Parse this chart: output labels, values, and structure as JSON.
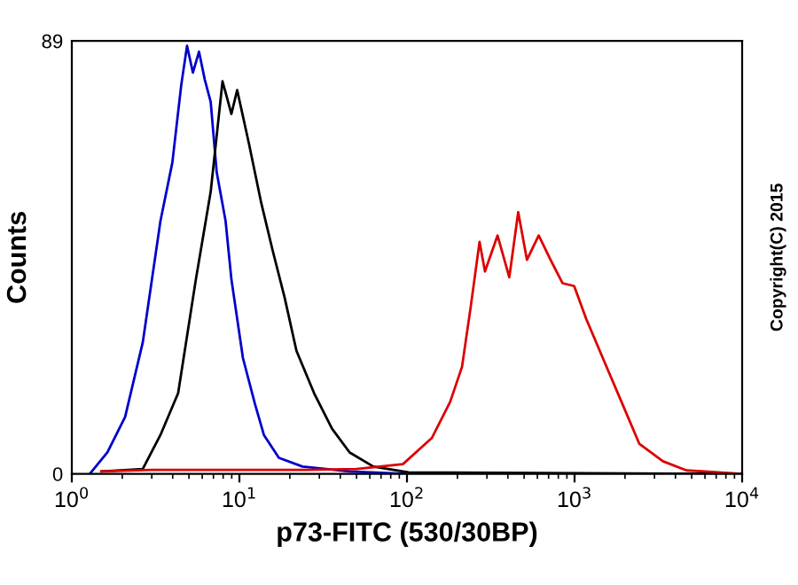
{
  "chart_data": {
    "type": "line",
    "xlabel": "p73-FITC (530/30BP)",
    "ylabel": "Counts",
    "log": "x",
    "xlim": [
      1,
      10000
    ],
    "ylim": [
      0,
      89
    ],
    "xticks": [
      {
        "value": 1,
        "label": "10$^{0}$"
      },
      {
        "value": 10,
        "label": "10$^{1}$"
      },
      {
        "value": 100,
        "label": "10$^{2}$"
      },
      {
        "value": 1000,
        "label": "10$^{3}$"
      },
      {
        "value": 10000,
        "label": "10$^{4}$"
      }
    ],
    "yticks": [
      0,
      89
    ],
    "marker": "none",
    "line_style": "solid",
    "annotations": [
      "Copyright(C) 2015"
    ],
    "series": [
      {
        "color": "#0000cc",
        "x": [
          1.28,
          1.63,
          2.08,
          2.65,
          3.38,
          3.98,
          4.5,
          4.87,
          5.28,
          5.74,
          6.22,
          6.74,
          7.32,
          8.27,
          8.96,
          10.5,
          12.4,
          14.0,
          17.2,
          23.8,
          45.5,
          100,
          10000
        ],
        "values": [
          0,
          4.4,
          11.7,
          27,
          52,
          64,
          80,
          88,
          82.5,
          86.8,
          81,
          76.5,
          62,
          52,
          40,
          23.8,
          14.3,
          8,
          3.3,
          1.5,
          0.5,
          0,
          0
        ]
      },
      {
        "color": "#000000",
        "x": [
          1.5,
          2.65,
          3.38,
          4.31,
          5.5,
          6.74,
          7.93,
          8.96,
          9.7,
          11.4,
          13.5,
          15.8,
          18.6,
          21.9,
          27.9,
          35.7,
          45.5,
          63,
          102,
          10000
        ],
        "values": [
          0.5,
          1,
          8,
          16.6,
          40,
          58,
          80.7,
          74,
          78.9,
          67.9,
          55.7,
          45.9,
          36.3,
          25.3,
          16.6,
          9.3,
          4.4,
          1.5,
          0.3,
          0
        ]
      },
      {
        "color": "#dd0000",
        "x": [
          1.5,
          3,
          6,
          12,
          25,
          50,
          94.6,
          141,
          181,
          213,
          240,
          271,
          292,
          347,
          408,
          461,
          520,
          611,
          719,
          847,
          995,
          1172,
          1496,
          1906,
          2432,
          3365,
          4667,
          6000,
          10000
        ],
        "values": [
          0.5,
          0.8,
          0.8,
          0.8,
          0.8,
          1,
          2,
          7.4,
          14.8,
          22,
          34.3,
          47.7,
          41.6,
          49,
          40.4,
          53.8,
          44,
          49,
          44,
          39.2,
          38.6,
          31.9,
          23.3,
          14.8,
          6.2,
          2.6,
          0.7,
          0.5,
          0
        ]
      }
    ]
  }
}
